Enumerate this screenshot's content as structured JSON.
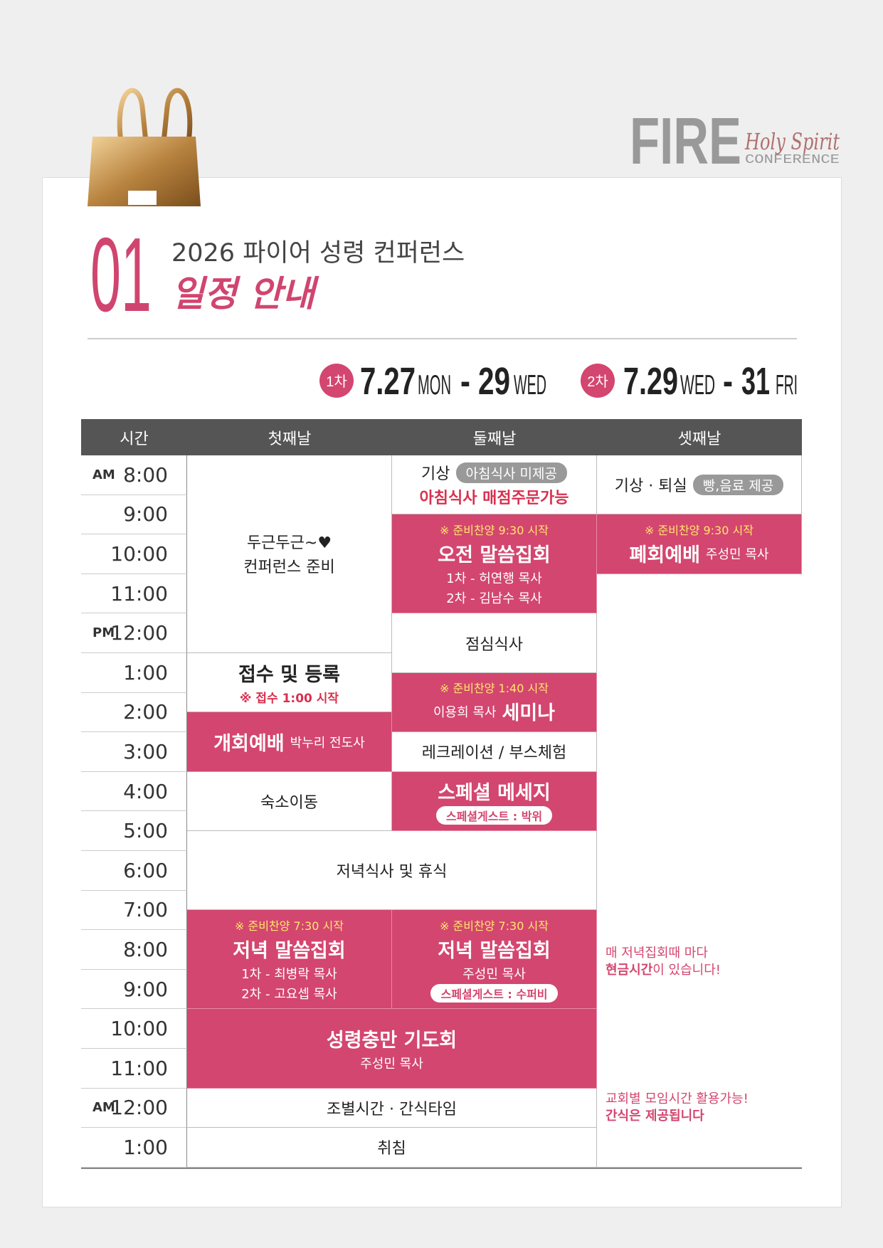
{
  "logo": {
    "main": "FIRE",
    "script": "Holy Spirit",
    "sub": "CONFERENCE"
  },
  "section": {
    "number": "01",
    "subtitle": "2026 파이어 성령 컨퍼런스",
    "title": "일정 안내"
  },
  "dates": [
    {
      "badge": "1차",
      "start": "7.27",
      "start_day": "MON",
      "separator": "-",
      "end": "29",
      "end_day": "WED"
    },
    {
      "badge": "2차",
      "start": "7.29",
      "start_day": "WED",
      "separator": "-",
      "end": "31",
      "end_day": "FRI"
    }
  ],
  "schedule": {
    "headers": [
      "시간",
      "첫째날",
      "둘째날",
      "셋째날"
    ],
    "times": [
      {
        "period": "AM",
        "time": "8:00"
      },
      {
        "time": "9:00"
      },
      {
        "time": "10:00"
      },
      {
        "time": "11:00"
      },
      {
        "period": "PM",
        "time": "12:00"
      },
      {
        "time": "1:00"
      },
      {
        "time": "2:00"
      },
      {
        "time": "3:00"
      },
      {
        "time": "4:00"
      },
      {
        "time": "5:00"
      },
      {
        "time": "6:00"
      },
      {
        "time": "7:00"
      },
      {
        "time": "8:00"
      },
      {
        "time": "9:00"
      },
      {
        "time": "10:00"
      },
      {
        "time": "11:00"
      },
      {
        "period": "AM",
        "time": "12:00"
      },
      {
        "time": "1:00"
      }
    ],
    "cells": [
      {
        "lines": [
          "두근두근~♥",
          "컨퍼런스 준비"
        ]
      },
      {
        "title": "접수 및 등록",
        "note": "※ 접수 1:00 시작"
      },
      {
        "title": "개회예배",
        "speaker": "박누리 전도사"
      },
      {
        "title": "숙소이동"
      },
      {
        "title": "저녁식사 및 휴식"
      },
      {
        "note": "※ 준비찬양 7:30 시작",
        "title": "저녁 말씀집회",
        "lines": [
          "1차 - 최병락 목사",
          "2차 - 고요셉 목사"
        ]
      },
      {
        "title": "성령충만 기도회",
        "speaker": "주성민 목사"
      },
      {
        "title": "조별시간 · 간식타임"
      },
      {
        "title": "취침"
      },
      {
        "title": "기상",
        "tag": "아침식사 미제공",
        "note": "아침식사 매점주문가능"
      },
      {
        "note": "※ 준비찬양 9:30 시작",
        "title": "오전 말씀집회",
        "lines": [
          "1차 - 허연행 목사",
          "2차 - 김남수 목사"
        ]
      },
      {
        "title": "점심식사"
      },
      {
        "note": "※ 준비찬양 1:40 시작",
        "speaker": "이용희 목사",
        "title": "세미나"
      },
      {
        "title": "레크레이션 / 부스체험"
      },
      {
        "title": "스페셜 메세지",
        "tag": "스페셜게스트 : 박위"
      },
      {
        "note": "※ 준비찬양 7:30 시작",
        "title": "저녁 말씀집회",
        "speaker": "주성민 목사",
        "tag": "스페셜게스트 : 수퍼비"
      },
      {
        "title": "기상 · 퇴실",
        "tag": "빵,음료 제공"
      },
      {
        "note": "※ 준비찬양 9:30 시작",
        "title": "폐회예배",
        "speaker": "주성민 목사"
      },
      {
        "remarks": [
          {
            "text": "매 저녁집회때 마다",
            "strong": "현금시간",
            "after": "이 있습니다!"
          },
          {
            "text": "교회별 모임시간 활용가능!",
            "strong": "간식은 제공됩니다"
          }
        ]
      }
    ]
  }
}
